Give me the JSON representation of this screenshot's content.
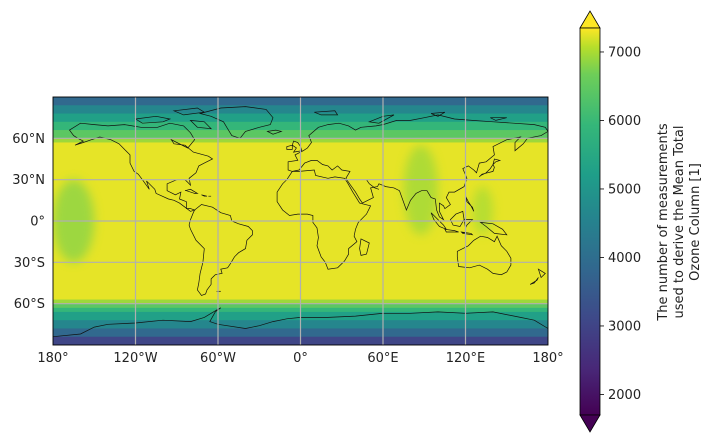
{
  "chart_data": {
    "type": "heatmap",
    "title": "",
    "projection": "PlateCarree",
    "xlim": [
      -180,
      180
    ],
    "ylim": [
      -90,
      90
    ],
    "x_ticks": [
      {
        "value": -180,
        "label": "180°"
      },
      {
        "value": -120,
        "label": "120°W"
      },
      {
        "value": -60,
        "label": "60°W"
      },
      {
        "value": 0,
        "label": "0°"
      },
      {
        "value": 60,
        "label": "60°E"
      },
      {
        "value": 120,
        "label": "120°E"
      },
      {
        "value": 180,
        "label": "180°"
      }
    ],
    "y_ticks": [
      {
        "value": 60,
        "label": "60°N"
      },
      {
        "value": 30,
        "label": "30°N"
      },
      {
        "value": 0,
        "label": "0°"
      },
      {
        "value": -30,
        "label": "30°S"
      },
      {
        "value": -60,
        "label": "60°S"
      }
    ],
    "gridlines": true,
    "grid_color": "#b0b0b0",
    "coastlines": true,
    "colormap": "viridis",
    "colorbar": {
      "range": [
        1700,
        7350
      ],
      "extend": "both",
      "ticks": [
        2000,
        3000,
        4000,
        5000,
        6000,
        7000
      ],
      "tick_labels": [
        "2000",
        "3000",
        "4000",
        "5000",
        "6000",
        "7000"
      ],
      "label_lines": [
        "The number of measurements",
        "used to derive the Mean Total",
        "Ozone Column [1]"
      ],
      "placement": "right"
    },
    "latitude_bands": [
      {
        "lat_min": 84,
        "lat_max": 90,
        "value": 3600
      },
      {
        "lat_min": 78,
        "lat_max": 84,
        "value": 4300
      },
      {
        "lat_min": 72,
        "lat_max": 78,
        "value": 4900
      },
      {
        "lat_min": 66,
        "lat_max": 72,
        "value": 5450
      },
      {
        "lat_min": 60,
        "lat_max": 66,
        "value": 5900
      },
      {
        "lat_min": 57,
        "lat_max": 60,
        "value": 6500
      },
      {
        "lat_min": -57,
        "lat_max": 57,
        "value": 7150
      },
      {
        "lat_min": -60,
        "lat_max": -57,
        "value": 6500
      },
      {
        "lat_min": -63,
        "lat_max": -60,
        "value": 5900
      },
      {
        "lat_min": -66,
        "lat_max": -63,
        "value": 5450
      },
      {
        "lat_min": -72,
        "lat_max": -66,
        "value": 4900
      },
      {
        "lat_min": -78,
        "lat_max": -72,
        "value": 4300
      },
      {
        "lat_min": -84,
        "lat_max": -78,
        "value": 3600
      },
      {
        "lat_min": -90,
        "lat_max": -84,
        "value": 2900
      }
    ],
    "features": [
      {
        "lon_min": -180,
        "lon_max": -150,
        "lat_min": -30,
        "lat_max": 30,
        "value": 6300
      },
      {
        "lon_min": 75,
        "lon_max": 100,
        "lat_min": -10,
        "lat_max": 55,
        "value": 6500
      },
      {
        "lon_min": 125,
        "lon_max": 140,
        "lat_min": -10,
        "lat_max": 25,
        "value": 6600
      }
    ]
  }
}
